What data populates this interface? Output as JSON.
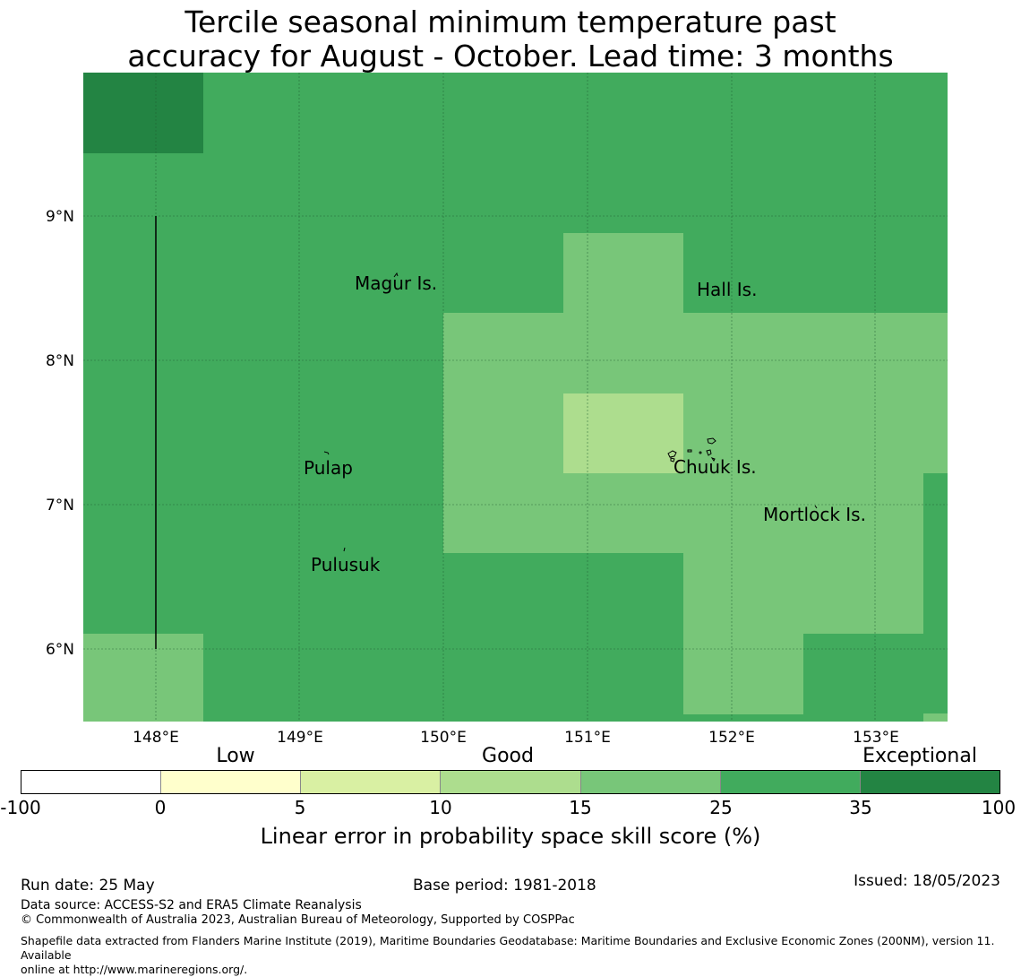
{
  "title_line1": "Tercile seasonal minimum temperature past",
  "title_line2": "accuracy for August - October. Lead time: 3 months",
  "map": {
    "lon_labels": [
      "148°E",
      "149°E",
      "150°E",
      "151°E",
      "152°E",
      "153°E"
    ],
    "lat_labels": [
      "9°N",
      "8°N",
      "7°N",
      "6°N"
    ],
    "places": [
      {
        "name": "Magur Is."
      },
      {
        "name": "Hall Is."
      },
      {
        "name": "Pulap"
      },
      {
        "name": "Chuuk Is."
      },
      {
        "name": "Mortlock Is."
      },
      {
        "name": "Pulusuk"
      }
    ],
    "colors": {
      "c_25_35": "#41ab5d",
      "c_15_25": "#78c679",
      "c_10_15": "#addd8e",
      "c_35_100": "#238443"
    }
  },
  "colorbar": {
    "category_labels": [
      "Low",
      "Good",
      "Exceptional"
    ],
    "tick_labels": [
      "-100",
      "0",
      "5",
      "10",
      "15",
      "25",
      "35",
      "100"
    ],
    "colors": [
      "#ffffff",
      "#ffffcc",
      "#d9f0a3",
      "#addd8e",
      "#78c679",
      "#41ab5d",
      "#238443"
    ],
    "label": "Linear error in probability space skill score (%)"
  },
  "footer": {
    "run_date": "Run date: 25 May",
    "base_period": "Base period: 1981-2018",
    "issued": "Issued: 18/05/2023",
    "data_source": "Data source: ACCESS-S2 and ERA5 Climate Reanalysis",
    "copyright": "© Commonwealth of Australia 2023, Australian Bureau of Meteorology, Supported by COSPPac",
    "shapefile_line1": "Shapefile data extracted from Flanders Marine Institute (2019), Maritime Boundaries Geodatabase: Maritime Boundaries and Exclusive Economic Zones (200NM), version 11. Available",
    "shapefile_line2": "online at http://www.marineregions.org/."
  }
}
